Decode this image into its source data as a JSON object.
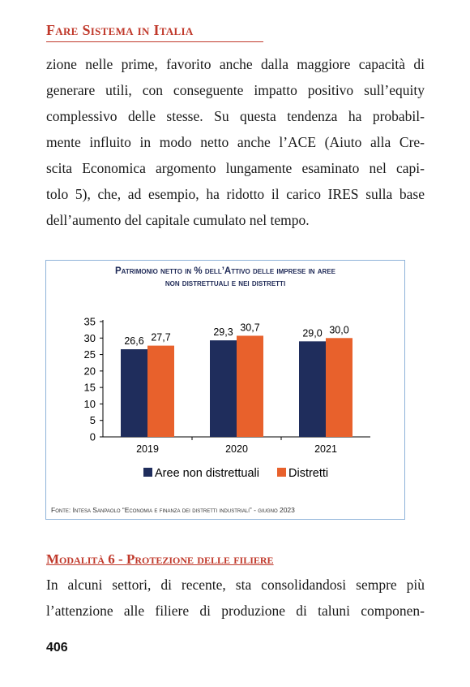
{
  "header": {
    "title": "Fare Sistema in Italia"
  },
  "paragraph1": {
    "lines": [
      "zione nelle prime, favorito anche dalla maggiore capacità di",
      "generare utili, con conseguente impatto positivo sull’equity",
      "complessivo delle stesse. Su questa tendenza ha probabil-",
      "mente influito in modo netto anche l’ACE (Aiuto alla Cre-",
      "scita Economica argomento lungamente esaminato nel capi-",
      "tolo 5), che, ad esempio, ha ridotto il carico IRES sulla base",
      "dell’aumento del capitale cumulato nel tempo."
    ]
  },
  "figure": {
    "title_line1": "Patrimonio netto in % dell’Attivo delle imprese in aree",
    "title_line2": "non distrettuali e nei distretti",
    "source": "Fonte: Intesa Sanpaolo “Economia e finanza dei distretti industriali” - giugno 2023"
  },
  "chart_data": {
    "type": "bar",
    "categories": [
      "2019",
      "2020",
      "2021"
    ],
    "series": [
      {
        "name": "Aree non distrettuali",
        "values": [
          26.6,
          29.3,
          29.0
        ],
        "labels": [
          "26,6",
          "29,3",
          "29,0"
        ],
        "color": "#1f2d5c"
      },
      {
        "name": "Distretti",
        "values": [
          27.7,
          30.7,
          30.0
        ],
        "labels": [
          "27,7",
          "30,7",
          "30,0"
        ],
        "color": "#e8612c"
      }
    ],
    "ylim": [
      0,
      35
    ],
    "yticks": [
      "0",
      "5",
      "10",
      "15",
      "20",
      "25",
      "30",
      "35"
    ],
    "legend": "bottom",
    "grid": false
  },
  "section": {
    "heading": "Modalità 6 - Protezione delle filiere"
  },
  "paragraph2": {
    "lines": [
      "In alcuni settori, di recente, sta consolidandosi sempre più",
      "l’attenzione alle filiere di produzione di taluni componen-"
    ]
  },
  "page": {
    "number": "406"
  }
}
